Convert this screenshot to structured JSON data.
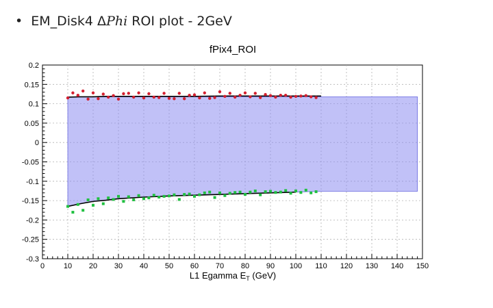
{
  "slide": {
    "bullet": "•",
    "title_pre": "EM_Disk4 Δ",
    "title_math": "Phi",
    "title_post": " ROI plot - 2GeV"
  },
  "chart_data": {
    "type": "scatter",
    "title": "fPix4_ROI",
    "xlabel_main": "L1 Egamma E",
    "xlabel_sub": "T",
    "xlabel_unit": " (GeV)",
    "ylabel": "",
    "xlim": [
      0,
      150
    ],
    "ylim": [
      -0.3,
      0.2
    ],
    "x_ticks": [
      0,
      10,
      20,
      30,
      40,
      50,
      60,
      70,
      80,
      90,
      100,
      110,
      120,
      130,
      140,
      150
    ],
    "y_ticks": [
      -0.3,
      -0.25,
      -0.2,
      -0.15,
      -0.1,
      -0.05,
      0,
      0.05,
      0.1,
      0.15,
      0.2
    ],
    "x_tick_labels": [
      "0",
      "10",
      "20",
      "30",
      "40",
      "50",
      "60",
      "70",
      "80",
      "90",
      "100",
      "110",
      "120",
      "130",
      "140",
      "150"
    ],
    "y_tick_labels": [
      "-0.3",
      "-0.25",
      "-0.2",
      "-0.15",
      "-0.1",
      "-0.05",
      "0",
      "0.05",
      "0.1",
      "0.15",
      "0.2"
    ],
    "grid": true,
    "colors": {
      "upper_points": "#d42030",
      "lower_points": "#20c040",
      "fit": "#000000",
      "band": "#8e8ef0",
      "band_edge": "#6a6ae0"
    },
    "band": {
      "x_start": 10,
      "x_end": 148,
      "upper": {
        "x": [
          10,
          148
        ],
        "y": [
          0.118,
          0.118
        ]
      },
      "lower": {
        "x": [
          10,
          15,
          20,
          25,
          30,
          40,
          50,
          60,
          70,
          80,
          90,
          100,
          110,
          148
        ],
        "y": [
          -0.165,
          -0.158,
          -0.152,
          -0.149,
          -0.145,
          -0.141,
          -0.138,
          -0.136,
          -0.134,
          -0.132,
          -0.13,
          -0.128,
          -0.126,
          -0.126
        ]
      }
    },
    "series": [
      {
        "marker": "circle",
        "x": [
          10,
          12,
          14,
          16,
          18,
          20,
          22,
          24,
          26,
          28,
          30,
          32,
          34,
          36,
          38,
          40,
          42,
          44,
          46,
          48,
          50,
          52,
          54,
          56,
          58,
          60,
          62,
          64,
          66,
          68,
          70,
          72,
          74,
          76,
          78,
          80,
          82,
          84,
          86,
          88,
          90,
          92,
          94,
          96,
          98,
          100,
          102,
          104,
          106,
          108
        ],
        "y": [
          0.115,
          0.128,
          0.122,
          0.133,
          0.112,
          0.128,
          0.113,
          0.125,
          0.117,
          0.121,
          0.112,
          0.126,
          0.127,
          0.117,
          0.128,
          0.115,
          0.126,
          0.117,
          0.116,
          0.127,
          0.114,
          0.113,
          0.127,
          0.113,
          0.122,
          0.123,
          0.115,
          0.128,
          0.114,
          0.116,
          0.131,
          0.119,
          0.127,
          0.117,
          0.122,
          0.128,
          0.118,
          0.127,
          0.116,
          0.124,
          0.121,
          0.117,
          0.122,
          0.122,
          0.117,
          0.119,
          0.12,
          0.121,
          0.118,
          0.116
        ]
      },
      {
        "marker": "square",
        "x": [
          10,
          12,
          14,
          16,
          18,
          20,
          22,
          24,
          26,
          28,
          30,
          32,
          34,
          36,
          38,
          40,
          42,
          44,
          46,
          48,
          50,
          52,
          54,
          56,
          58,
          60,
          62,
          64,
          66,
          68,
          70,
          72,
          74,
          76,
          78,
          80,
          82,
          84,
          86,
          88,
          90,
          92,
          94,
          96,
          98,
          100,
          102,
          104,
          106,
          108
        ],
        "y": [
          -0.165,
          -0.18,
          -0.16,
          -0.175,
          -0.148,
          -0.162,
          -0.145,
          -0.158,
          -0.143,
          -0.147,
          -0.139,
          -0.152,
          -0.14,
          -0.148,
          -0.137,
          -0.145,
          -0.143,
          -0.136,
          -0.141,
          -0.139,
          -0.138,
          -0.135,
          -0.147,
          -0.134,
          -0.133,
          -0.139,
          -0.135,
          -0.13,
          -0.128,
          -0.142,
          -0.13,
          -0.137,
          -0.131,
          -0.129,
          -0.128,
          -0.134,
          -0.128,
          -0.125,
          -0.135,
          -0.127,
          -0.126,
          -0.129,
          -0.128,
          -0.124,
          -0.131,
          -0.125,
          -0.129,
          -0.123,
          -0.13,
          -0.127
        ]
      }
    ],
    "fits": [
      {
        "x": [
          10,
          15,
          20,
          25,
          30,
          40,
          50,
          60,
          70,
          80,
          90,
          100,
          110
        ],
        "y": [
          0.117,
          0.118,
          0.118,
          0.119,
          0.119,
          0.119,
          0.119,
          0.119,
          0.12,
          0.12,
          0.12,
          0.12,
          0.12
        ]
      },
      {
        "x": [
          10,
          15,
          20,
          25,
          30,
          40,
          50,
          60,
          70,
          80,
          90,
          100
        ],
        "y": [
          -0.165,
          -0.158,
          -0.152,
          -0.149,
          -0.145,
          -0.141,
          -0.138,
          -0.136,
          -0.134,
          -0.132,
          -0.13,
          -0.128
        ]
      }
    ]
  }
}
